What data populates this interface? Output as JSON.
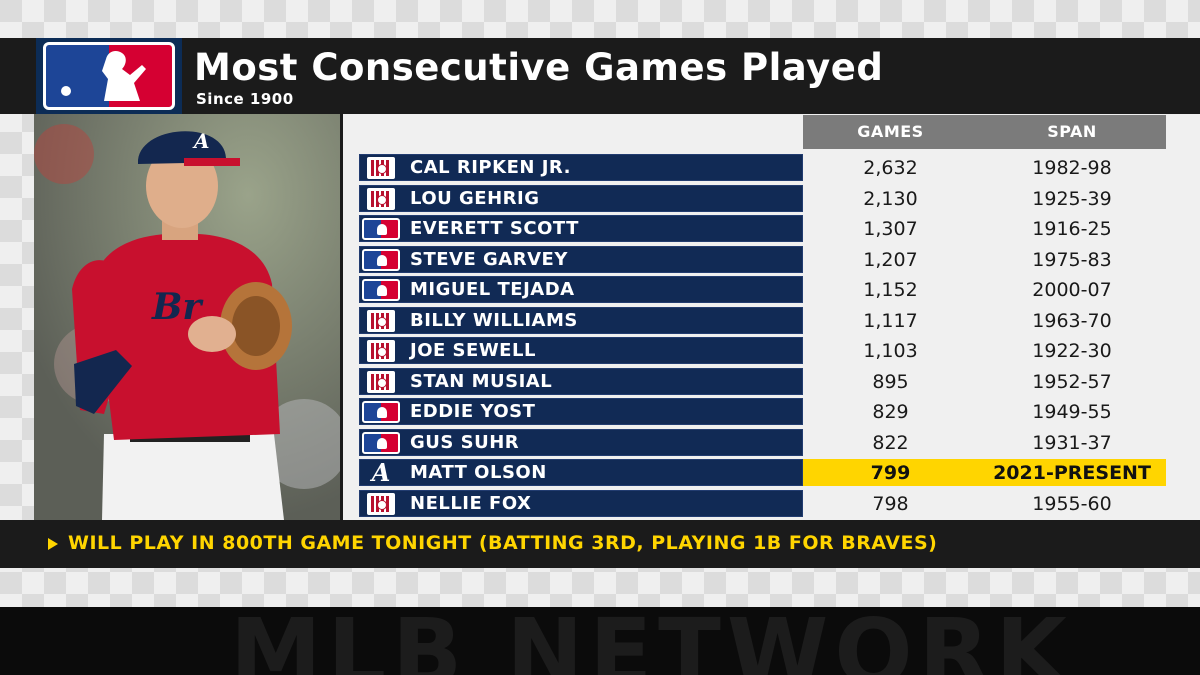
{
  "header": {
    "title": "Most Consecutive Games Played",
    "subtitle": "Since 1900",
    "logo_icon": "mlb-logo-icon"
  },
  "table": {
    "columns": {
      "games": "GAMES",
      "span": "SPAN"
    },
    "rows": [
      {
        "icon": "hall-of-fame-icon",
        "name": "CAL RIPKEN JR.",
        "games": "2,632",
        "span": "1982-98"
      },
      {
        "icon": "hall-of-fame-icon",
        "name": "LOU GEHRIG",
        "games": "2,130",
        "span": "1925-39"
      },
      {
        "icon": "mlb-logo-icon",
        "name": "EVERETT SCOTT",
        "games": "1,307",
        "span": "1916-25"
      },
      {
        "icon": "mlb-logo-icon",
        "name": "STEVE GARVEY",
        "games": "1,207",
        "span": "1975-83"
      },
      {
        "icon": "mlb-logo-icon",
        "name": "MIGUEL TEJADA",
        "games": "1,152",
        "span": "2000-07"
      },
      {
        "icon": "hall-of-fame-icon",
        "name": "BILLY WILLIAMS",
        "games": "1,117",
        "span": "1963-70"
      },
      {
        "icon": "hall-of-fame-icon",
        "name": "JOE SEWELL",
        "games": "1,103",
        "span": "1922-30"
      },
      {
        "icon": "hall-of-fame-icon",
        "name": "STAN MUSIAL",
        "games": "895",
        "span": "1952-57"
      },
      {
        "icon": "mlb-logo-icon",
        "name": "EDDIE YOST",
        "games": "829",
        "span": "1949-55"
      },
      {
        "icon": "mlb-logo-icon",
        "name": "GUS SUHR",
        "games": "822",
        "span": "1931-37"
      },
      {
        "icon": "braves-logo-icon",
        "name": "MATT OLSON",
        "games": "799",
        "span": "2021-PRESENT",
        "highlight": true
      },
      {
        "icon": "hall-of-fame-icon",
        "name": "NELLIE FOX",
        "games": "798",
        "span": "1955-60"
      }
    ]
  },
  "note": {
    "text": "WILL PLAY IN 800TH GAME TONIGHT (BATTING 3RD, PLAYING 1B FOR BRAVES)"
  },
  "watermark": "MLB NETWORK",
  "colors": {
    "header_bg": "#1b1b1b",
    "name_bar": "#112a55",
    "highlight": "#ffd500",
    "column_header": "#7b7b7b",
    "note_text": "#ffd500"
  }
}
